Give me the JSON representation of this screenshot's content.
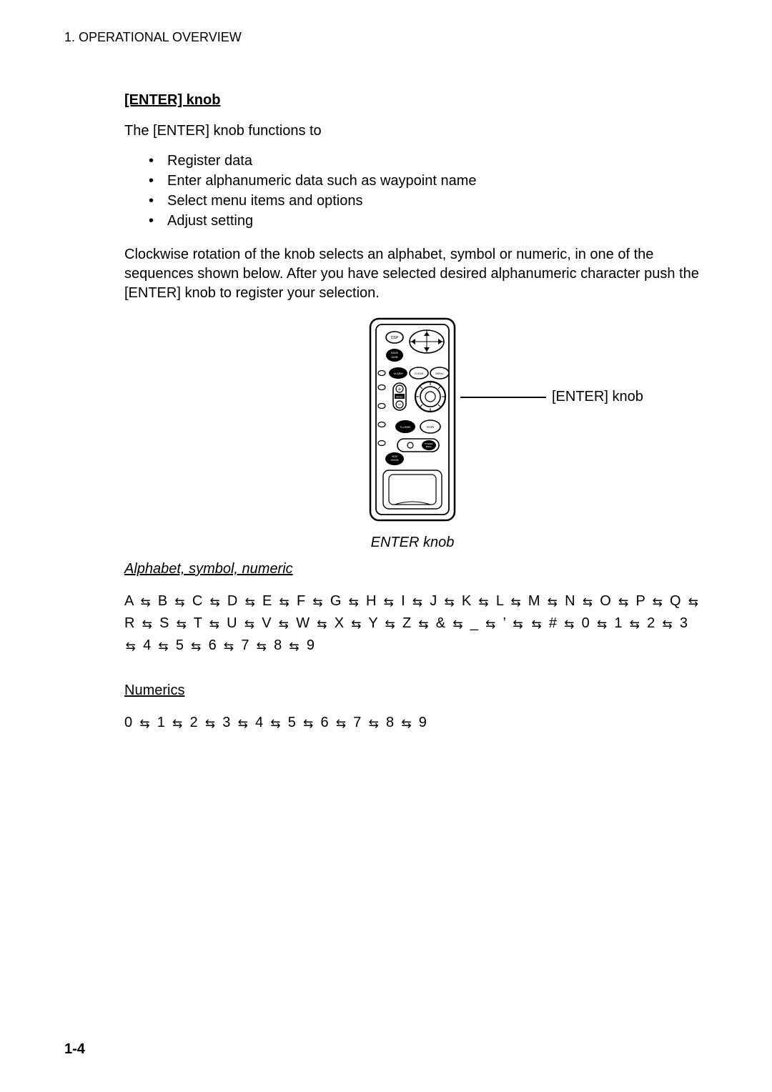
{
  "header": "1. OPERATIONAL OVERVIEW",
  "section_title": "[ENTER] knob",
  "intro": "The [ENTER] knob functions to",
  "bullets": [
    "Register data",
    "Enter alphanumeric data such as waypoint name",
    "Select menu items and options",
    "Adjust setting"
  ],
  "paragraph": "Clockwise rotation of the knob selects an alphabet, symbol or numeric, in one of the sequences shown below. After you have selected desired alphanumeric character push the [ENTER] knob to register your selection.",
  "callout": "[ENTER] knob",
  "figure_caption": "ENTER knob",
  "alpha_heading": "Alphabet, symbol, numeric",
  "alpha_sequence": [
    "A",
    "B",
    "C",
    "D",
    "E",
    "F",
    "G",
    "H",
    "I",
    "J",
    "K",
    "L",
    "M",
    "N",
    "O",
    "P",
    "Q",
    "R",
    "S",
    "T",
    "U",
    "V",
    "W",
    "X",
    "Y",
    "Z",
    "&",
    "_",
    "’",
    " ",
    "#",
    "0",
    "1",
    "2",
    "3",
    "4",
    "5",
    "6",
    "7",
    "8",
    "9"
  ],
  "numerics_heading": "Numerics",
  "numerics_sequence": [
    "0",
    "1",
    "2",
    "3",
    "4",
    "5",
    "6",
    "7",
    "8",
    "9"
  ],
  "page_number": "1-4",
  "remote_labels": {
    "dsp": "DSP",
    "save_mob": "SAVE\nMOB",
    "alarm": "ALARM",
    "clear": "CLEAR",
    "menu": "MENU",
    "plus": "+",
    "minus": "−",
    "tll_mrk": "TLL/MRK",
    "gain": "GAIN",
    "hide_show": "HIDE\nSHOW",
    "pwr_brill": "POWER\nBRILL",
    "bkgd": "BKGD"
  },
  "colors": {
    "text": "#000000",
    "bg": "#ffffff",
    "line": "#000000"
  }
}
